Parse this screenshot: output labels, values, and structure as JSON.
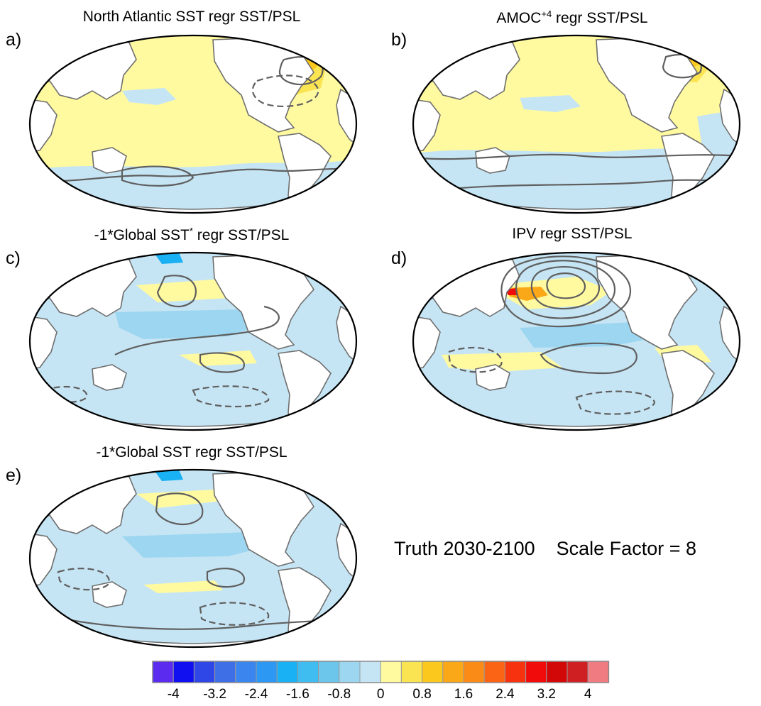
{
  "chart_data": [
    {
      "type": "map",
      "panel_label": "a)",
      "title": "North Atlantic SST regr SST/PSL",
      "projection": "Robinson (Pacific-centred)",
      "shading": "SST regression",
      "contours": "PSL regression (solid positive, dashed negative)",
      "dominant_sign": "positive",
      "main_features": [
        "warm North Atlantic",
        "warm tropical Pacific",
        "cool Southern Ocean"
      ]
    },
    {
      "type": "map",
      "panel_label": "b)",
      "title_main": "AMOC",
      "title_sup": "+4",
      "title_rest": " regr SST/PSL",
      "projection": "Robinson (Pacific-centred)",
      "dominant_sign": "positive",
      "main_features": [
        "warm North Atlantic",
        "weak warm Pacific",
        "cool Southern Ocean"
      ]
    },
    {
      "type": "map",
      "panel_label": "c)",
      "title_main": "-1*Global SST",
      "title_sup": "*",
      "title_rest": " regr SST/PSL",
      "projection": "Robinson (Pacific-centred)",
      "dominant_sign": "negative",
      "main_features": [
        "cool tropical Pacific",
        "warm North Pacific band",
        "dashed lows Southern Ocean"
      ]
    },
    {
      "type": "map",
      "panel_label": "d)",
      "title": "IPV regr SST/PSL",
      "projection": "Robinson (Pacific-centred)",
      "dominant_sign": "mixed",
      "main_features": [
        "strong warm Kuroshio extension",
        "concentric PSL high over North Pacific",
        "cool equatorial Pacific"
      ]
    },
    {
      "type": "map",
      "panel_label": "e)",
      "title": "-1*Global SST regr SST/PSL",
      "projection": "Robinson (Pacific-centred)",
      "dominant_sign": "negative",
      "main_features": [
        "cool global ocean",
        "warm North Pacific band",
        "dashed lows Southern Ocean"
      ]
    }
  ],
  "annotation": {
    "period": "Truth 2030-2100",
    "scale_factor": "Scale Factor = 8"
  },
  "colorbar": {
    "colors": [
      "#5b2cf0",
      "#1010f0",
      "#2e47e6",
      "#3f6fe6",
      "#3a86ee",
      "#2c98f4",
      "#1ab0f4",
      "#3fbcf0",
      "#6cc6ec",
      "#9cd6f0",
      "#c6e5f4",
      "#fffaa0",
      "#fbe452",
      "#fbc81e",
      "#fba818",
      "#fb8b17",
      "#fa6414",
      "#f6320f",
      "#f20b0b",
      "#d20707",
      "#cf1f22",
      "#f07b80"
    ],
    "tick_labels": [
      "-4",
      "-3.2",
      "-2.4",
      "-1.6",
      "-0.8",
      "0",
      "0.8",
      "1.6",
      "2.4",
      "3.2",
      "4"
    ],
    "tick_values": [
      -4,
      -3.2,
      -2.4,
      -1.6,
      -0.8,
      0,
      0.8,
      1.6,
      2.4,
      3.2,
      4
    ]
  }
}
